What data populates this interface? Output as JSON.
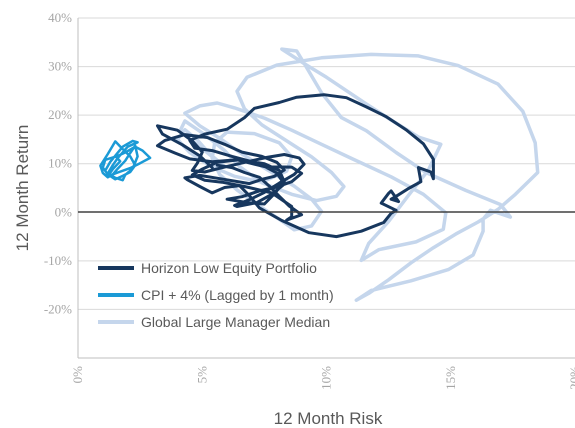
{
  "chart_data": {
    "type": "line",
    "xlabel": "12 Month Risk",
    "ylabel": "12 Month Return",
    "xlim": [
      0,
      20
    ],
    "ylim": [
      -30,
      40
    ],
    "x_ticks": [
      "0%",
      "5%",
      "10%",
      "15%",
      "20%"
    ],
    "y_ticks": [
      "40%",
      "30%",
      "20%",
      "10%",
      "0%",
      "-10%",
      "-20%"
    ],
    "y_tick_values": [
      40,
      30,
      20,
      10,
      0,
      -10,
      -20
    ],
    "x_tick_values": [
      0,
      5,
      10,
      15,
      20
    ],
    "grid": "horizontal",
    "legend_position": "bottom-left",
    "series": [
      {
        "name": "Global Large Manager Median",
        "color": "#c5d6ec",
        "points": [
          [
            5.6,
            10.6
          ],
          [
            4.9,
            13.5
          ],
          [
            4.1,
            16.7
          ],
          [
            4.3,
            18.8
          ],
          [
            5.1,
            16.0
          ],
          [
            5.9,
            12.7
          ],
          [
            6.5,
            9.4
          ],
          [
            7.4,
            6.1
          ],
          [
            8.6,
            3.7
          ],
          [
            9.6,
            2.4
          ],
          [
            10.4,
            3.3
          ],
          [
            10.7,
            5.3
          ],
          [
            10.2,
            8.2
          ],
          [
            9.4,
            11.4
          ],
          [
            8.4,
            14.7
          ],
          [
            7.4,
            18.0
          ],
          [
            6.7,
            21.3
          ],
          [
            6.4,
            24.9
          ],
          [
            6.8,
            27.8
          ],
          [
            8.0,
            30.3
          ],
          [
            9.8,
            31.8
          ],
          [
            11.8,
            32.5
          ],
          [
            13.7,
            32.2
          ],
          [
            15.3,
            30.2
          ],
          [
            16.9,
            26.4
          ],
          [
            17.9,
            20.8
          ],
          [
            18.4,
            14.3
          ],
          [
            18.5,
            8.2
          ],
          [
            18.2,
            6.7
          ],
          [
            17.6,
            3.7
          ],
          [
            16.9,
            0.6
          ],
          [
            16.1,
            -2.0
          ],
          [
            15.2,
            -4.5
          ],
          [
            14.3,
            -7.3
          ],
          [
            13.4,
            -10.4
          ],
          [
            12.5,
            -13.9
          ],
          [
            11.7,
            -16.7
          ],
          [
            11.2,
            -18.1
          ],
          [
            11.8,
            -16.1
          ],
          [
            13.4,
            -14.1
          ],
          [
            14.9,
            -11.8
          ],
          [
            15.9,
            -8.8
          ],
          [
            16.3,
            -3.9
          ],
          [
            16.3,
            -1.4
          ],
          [
            16.6,
            0.4
          ],
          [
            17.4,
            -1.0
          ],
          [
            17.0,
            1.6
          ],
          [
            15.6,
            4.5
          ],
          [
            14.0,
            8.2
          ],
          [
            12.8,
            12.3
          ],
          [
            11.6,
            16.8
          ],
          [
            10.6,
            19.5
          ],
          [
            9.8,
            24.6
          ],
          [
            9.1,
            30.7
          ],
          [
            8.8,
            33.2
          ],
          [
            8.2,
            33.6
          ],
          [
            9.2,
            30.3
          ],
          [
            10.0,
            27.8
          ],
          [
            10.9,
            24.7
          ],
          [
            11.6,
            22.3
          ],
          [
            12.6,
            19.0
          ],
          [
            13.7,
            15.5
          ],
          [
            14.6,
            14.0
          ],
          [
            14.1,
            8.7
          ],
          [
            13.3,
            3.5
          ],
          [
            12.5,
            -1.9
          ],
          [
            11.7,
            -6.4
          ],
          [
            11.4,
            -9.9
          ],
          [
            12.1,
            -7.7
          ],
          [
            13.6,
            -6.1
          ],
          [
            14.7,
            -3.5
          ],
          [
            14.8,
            -0.1
          ],
          [
            13.9,
            3.7
          ],
          [
            12.6,
            7.3
          ],
          [
            11.0,
            11.1
          ],
          [
            9.8,
            14.0
          ],
          [
            8.6,
            16.9
          ],
          [
            7.5,
            19.4
          ],
          [
            6.3,
            21.5
          ],
          [
            5.6,
            22.5
          ],
          [
            4.9,
            21.9
          ],
          [
            4.3,
            20.4
          ],
          [
            4.9,
            17.8
          ],
          [
            5.8,
            14.9
          ],
          [
            6.6,
            12.0
          ],
          [
            7.6,
            8.8
          ],
          [
            8.7,
            5.4
          ],
          [
            9.4,
            2.7
          ],
          [
            9.8,
            0.2
          ],
          [
            9.4,
            -2.8
          ],
          [
            8.7,
            -3.6
          ],
          [
            8.2,
            -1.8
          ],
          [
            7.3,
            1.3
          ],
          [
            6.4,
            4.6
          ],
          [
            5.7,
            7.8
          ],
          [
            5.4,
            11.1
          ],
          [
            5.5,
            14.3
          ],
          [
            6.0,
            16.5
          ],
          [
            7.1,
            16.2
          ],
          [
            8.1,
            14.3
          ],
          [
            8.6,
            11.4
          ],
          [
            8.4,
            8.5
          ],
          [
            7.4,
            6.2
          ],
          [
            6.3,
            7.4
          ],
          [
            5.3,
            9.6
          ],
          [
            4.5,
            12.3
          ],
          [
            4.0,
            15.0
          ],
          [
            4.3,
            17.0
          ],
          [
            4.8,
            14.9
          ],
          [
            5.3,
            12.0
          ],
          [
            5.9,
            9.4
          ]
        ]
      },
      {
        "name": "Horizon Low Equity Portfolio",
        "color": "#17375e",
        "points": [
          [
            5.4,
            9.2
          ],
          [
            4.9,
            11.6
          ],
          [
            4.2,
            13.9
          ],
          [
            3.4,
            16.1
          ],
          [
            3.2,
            17.8
          ],
          [
            4.0,
            16.9
          ],
          [
            4.6,
            14.7
          ],
          [
            5.0,
            12.4
          ],
          [
            4.8,
            10.1
          ],
          [
            4.6,
            8.6
          ],
          [
            5.1,
            8.3
          ],
          [
            5.9,
            9.3
          ],
          [
            6.8,
            10.4
          ],
          [
            7.6,
            11.3
          ],
          [
            8.3,
            11.9
          ],
          [
            8.9,
            11.2
          ],
          [
            9.1,
            9.9
          ],
          [
            8.7,
            7.8
          ],
          [
            8.1,
            6.0
          ],
          [
            7.5,
            4.1
          ],
          [
            6.9,
            2.6
          ],
          [
            6.3,
            1.4
          ],
          [
            6.4,
            1.2
          ],
          [
            7.2,
            2.0
          ],
          [
            7.8,
            3.7
          ],
          [
            8.3,
            5.8
          ],
          [
            8.0,
            8.1
          ],
          [
            7.3,
            10.0
          ],
          [
            6.2,
            11.5
          ],
          [
            5.4,
            12.7
          ],
          [
            4.7,
            13.2
          ],
          [
            4.5,
            14.8
          ],
          [
            5.1,
            16.1
          ],
          [
            6.0,
            17.1
          ],
          [
            6.7,
            19.5
          ],
          [
            7.1,
            21.4
          ],
          [
            8.1,
            22.6
          ],
          [
            8.8,
            23.7
          ],
          [
            9.9,
            24.2
          ],
          [
            10.8,
            23.6
          ],
          [
            11.6,
            21.7
          ],
          [
            12.4,
            19.7
          ],
          [
            13.2,
            17.0
          ],
          [
            13.9,
            14.1
          ],
          [
            14.3,
            10.9
          ],
          [
            14.3,
            6.9
          ],
          [
            14.2,
            8.3
          ],
          [
            13.7,
            9.2
          ],
          [
            13.8,
            6.3
          ],
          [
            13.3,
            4.9
          ],
          [
            12.8,
            3.3
          ],
          [
            12.6,
            2.7
          ],
          [
            12.9,
            2.2
          ],
          [
            12.6,
            4.4
          ],
          [
            12.5,
            3.9
          ],
          [
            12.2,
            1.9
          ],
          [
            12.8,
            0.4
          ],
          [
            12.6,
            -0.2
          ],
          [
            12.3,
            -2.1
          ],
          [
            11.4,
            -3.9
          ],
          [
            10.4,
            -5.0
          ],
          [
            9.3,
            -4.2
          ],
          [
            8.2,
            -1.7
          ],
          [
            7.3,
            0.9
          ],
          [
            6.9,
            3.4
          ],
          [
            6.5,
            5.5
          ],
          [
            5.9,
            5.1
          ],
          [
            5.4,
            4.0
          ],
          [
            4.9,
            5.3
          ],
          [
            4.4,
            6.7
          ],
          [
            4.3,
            7.1
          ],
          [
            4.9,
            7.6
          ],
          [
            5.5,
            7.1
          ],
          [
            6.2,
            6.5
          ],
          [
            6.9,
            5.9
          ],
          [
            7.4,
            6.8
          ],
          [
            7.9,
            7.4
          ],
          [
            8.3,
            8.7
          ],
          [
            8.0,
            10.3
          ],
          [
            7.4,
            11.5
          ],
          [
            6.6,
            12.4
          ],
          [
            5.9,
            14.0
          ],
          [
            5.2,
            15.4
          ],
          [
            4.3,
            16.0
          ],
          [
            3.5,
            14.8
          ],
          [
            3.2,
            13.7
          ],
          [
            3.9,
            12.2
          ],
          [
            4.5,
            11.0
          ],
          [
            5.4,
            10.4
          ],
          [
            6.4,
            10.8
          ],
          [
            7.5,
            9.4
          ],
          [
            8.6,
            9.3
          ],
          [
            9.0,
            8.0
          ],
          [
            8.6,
            6.3
          ],
          [
            8.0,
            5.2
          ],
          [
            7.3,
            4.4
          ],
          [
            6.6,
            3.2
          ],
          [
            6.0,
            2.7
          ],
          [
            6.8,
            2.0
          ],
          [
            7.5,
            1.7
          ],
          [
            7.9,
            3.8
          ],
          [
            8.3,
            6.3
          ],
          [
            8.1,
            8.6
          ],
          [
            7.5,
            10.0
          ],
          [
            6.5,
            10.8
          ],
          [
            5.6,
            10.3
          ],
          [
            5.0,
            8.9
          ],
          [
            4.6,
            7.7
          ],
          [
            5.1,
            6.6
          ],
          [
            5.8,
            6.2
          ],
          [
            6.7,
            5.3
          ],
          [
            7.8,
            4.0
          ],
          [
            8.6,
            1.2
          ],
          [
            8.6,
            -0.9
          ],
          [
            8.4,
            -1.6
          ],
          [
            9.0,
            -0.5
          ],
          [
            8.5,
            1.3
          ],
          [
            8.1,
            3.3
          ],
          [
            7.7,
            5.4
          ],
          [
            7.3,
            7.2
          ],
          [
            6.7,
            8.2
          ],
          [
            6.2,
            9.2
          ],
          [
            5.6,
            9.7
          ]
        ]
      },
      {
        "name": "CPI + 4% (Lagged by 1 month)",
        "color": "#1b9ad6",
        "points": [
          [
            1.1,
            8.6
          ],
          [
            1.3,
            10.4
          ],
          [
            1.8,
            13.5
          ],
          [
            2.2,
            14.7
          ],
          [
            2.4,
            14.4
          ],
          [
            2.0,
            13.5
          ],
          [
            1.6,
            11.2
          ],
          [
            1.4,
            9.7
          ],
          [
            1.2,
            8.0
          ],
          [
            1.5,
            7.1
          ],
          [
            1.8,
            6.6
          ],
          [
            1.9,
            7.7
          ],
          [
            2.2,
            9.0
          ],
          [
            2.4,
            11.5
          ],
          [
            2.3,
            13.7
          ],
          [
            2.1,
            12.2
          ],
          [
            1.9,
            10.6
          ],
          [
            1.6,
            9.0
          ],
          [
            1.4,
            7.8
          ],
          [
            1.2,
            7.2
          ],
          [
            1.0,
            8.1
          ],
          [
            0.9,
            9.6
          ],
          [
            1.2,
            12.0
          ],
          [
            1.5,
            14.6
          ],
          [
            1.8,
            13.0
          ],
          [
            2.1,
            11.5
          ],
          [
            2.3,
            9.7
          ],
          [
            2.1,
            8.3
          ],
          [
            1.8,
            7.5
          ],
          [
            1.5,
            6.8
          ],
          [
            1.2,
            7.8
          ],
          [
            1.0,
            9.2
          ],
          [
            1.1,
            10.8
          ],
          [
            1.6,
            11.6
          ],
          [
            1.9,
            12.3
          ],
          [
            2.3,
            13.5
          ],
          [
            2.6,
            12.7
          ],
          [
            2.9,
            11.2
          ],
          [
            2.5,
            10.1
          ],
          [
            2.1,
            9.1
          ],
          [
            1.6,
            8.2
          ],
          [
            1.2,
            7.4
          ],
          [
            1.4,
            8.9
          ],
          [
            1.7,
            10.5
          ],
          [
            1.5,
            11.6
          ]
        ]
      }
    ]
  }
}
